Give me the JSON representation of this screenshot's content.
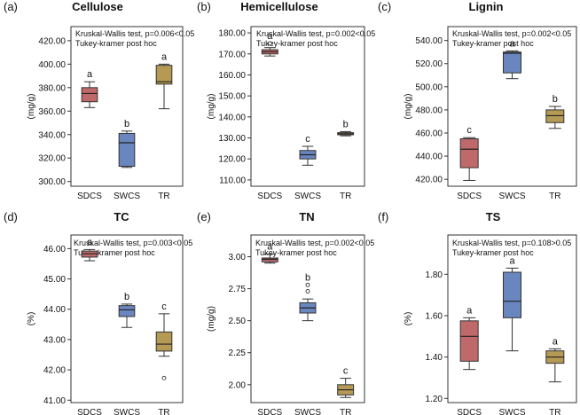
{
  "colors": {
    "SDCS": "#c0696a",
    "SWCS": "#6a86bf",
    "TR": "#b59a55",
    "stroke": "#333333"
  },
  "chart_data": [
    {
      "type": "boxplot",
      "panel": "(a)",
      "title": "Cellulose",
      "ylabel": "(mg/g)",
      "test_text": "Kruskal-Wallis test, p=0.006<0.05",
      "posthoc_text": "Tukey-kramer post hoc",
      "ylim": [
        296,
        432
      ],
      "ticks": [
        300,
        320,
        340,
        360,
        380,
        400,
        420
      ],
      "tick_labels": [
        "300.00",
        "320.00",
        "340.00",
        "360.00",
        "380.00",
        "400.00",
        "420.00"
      ],
      "categories": [
        "SDCS",
        "SWCS",
        "TR"
      ],
      "boxes": [
        {
          "name": "SDCS",
          "min": 363,
          "q1": 368,
          "median": 375,
          "q3": 380,
          "max": 385,
          "outliers": [],
          "letter": "a"
        },
        {
          "name": "SWCS",
          "min": 312,
          "q1": 313,
          "median": 333,
          "q3": 341,
          "max": 343,
          "outliers": [],
          "letter": "b"
        },
        {
          "name": "TR",
          "min": 362,
          "q1": 383,
          "median": 385,
          "q3": 399,
          "max": 400,
          "outliers": [],
          "letter": "a"
        }
      ]
    },
    {
      "type": "boxplot",
      "panel": "(b)",
      "title": "Hemicellulose",
      "ylabel": "(mg/g)",
      "test_text": "Kruskal-Wallis test, p=0.002<0.05",
      "posthoc_text": "Tukey-kramer post hoc",
      "ylim": [
        107,
        183
      ],
      "ticks": [
        110,
        120,
        130,
        140,
        150,
        160,
        170,
        180
      ],
      "tick_labels": [
        "110.00",
        "120.00",
        "130.00",
        "140.00",
        "150.00",
        "160.00",
        "170.00",
        "180.00"
      ],
      "categories": [
        "SDCS",
        "SWCS",
        "TR"
      ],
      "boxes": [
        {
          "name": "SDCS",
          "min": 169,
          "q1": 170,
          "median": 171,
          "q3": 172,
          "max": 173,
          "outliers": [
            175
          ],
          "letter": "a"
        },
        {
          "name": "SWCS",
          "min": 117,
          "q1": 120,
          "median": 122,
          "q3": 124,
          "max": 126,
          "outliers": [],
          "letter": "c"
        },
        {
          "name": "TR",
          "min": 131,
          "q1": 131.5,
          "median": 132,
          "q3": 132.5,
          "max": 133,
          "outliers": [],
          "letter": "b"
        }
      ]
    },
    {
      "type": "boxplot",
      "panel": "(c)",
      "title": "Lignin",
      "ylabel": "(mg/g)",
      "test_text": "Kruskal-Wallis test, p=0.002<0.05",
      "posthoc_text": "Tukey-kramer post hoc",
      "ylim": [
        414,
        552
      ],
      "ticks": [
        420,
        440,
        460,
        480,
        500,
        520,
        540
      ],
      "tick_labels": [
        "420.00",
        "440.00",
        "460.00",
        "480.00",
        "500.00",
        "520.00",
        "540.00"
      ],
      "categories": [
        "SDCS",
        "SWCS",
        "TR"
      ],
      "boxes": [
        {
          "name": "SDCS",
          "min": 419,
          "q1": 430,
          "median": 446,
          "q3": 455,
          "max": 456,
          "outliers": [],
          "letter": "c"
        },
        {
          "name": "SWCS",
          "min": 507,
          "q1": 512,
          "median": 529,
          "q3": 530,
          "max": 531,
          "outliers": [],
          "letter": "a"
        },
        {
          "name": "TR",
          "min": 464,
          "q1": 469,
          "median": 475,
          "q3": 480,
          "max": 483,
          "outliers": [],
          "letter": "b"
        }
      ]
    },
    {
      "type": "boxplot",
      "panel": "(d)",
      "title": "TC",
      "ylabel": "(%)",
      "test_text": "Kruskal-Wallis test, p=0.003<0.05",
      "posthoc_text": "Tukey-kramer post hoc",
      "ylim": [
        40.92,
        46.45
      ],
      "ticks": [
        41,
        42,
        43,
        44,
        45,
        46
      ],
      "tick_labels": [
        "41.00",
        "42.00",
        "43.00",
        "44.00",
        "45.00",
        "46.00"
      ],
      "categories": [
        "SDCS",
        "SWCS",
        "TR"
      ],
      "boxes": [
        {
          "name": "SDCS",
          "min": 45.6,
          "q1": 45.72,
          "median": 45.83,
          "q3": 45.92,
          "max": 45.97,
          "outliers": [],
          "letter": "a"
        },
        {
          "name": "SWCS",
          "min": 43.4,
          "q1": 43.76,
          "median": 43.98,
          "q3": 44.12,
          "max": 44.17,
          "outliers": [],
          "letter": "b"
        },
        {
          "name": "TR",
          "min": 42.45,
          "q1": 42.62,
          "median": 42.85,
          "q3": 43.25,
          "max": 43.85,
          "outliers": [
            41.73
          ],
          "letter": "c"
        }
      ]
    },
    {
      "type": "boxplot",
      "panel": "(e)",
      "title": "TN",
      "ylabel": "(mg/g)",
      "test_text": "Kruskal-Wallis test, p=0.002<0.05",
      "posthoc_text": "Tukey-kramer post hoc",
      "ylim": [
        1.86,
        3.17
      ],
      "ticks": [
        2.0,
        2.25,
        2.5,
        2.75,
        3.0
      ],
      "tick_labels": [
        "2.00",
        "2.25",
        "2.50",
        "2.75",
        "3.00"
      ],
      "categories": [
        "SDCS",
        "SWCS",
        "TR"
      ],
      "boxes": [
        {
          "name": "SDCS",
          "min": 2.95,
          "q1": 2.96,
          "median": 2.98,
          "q3": 2.99,
          "max": 3.02,
          "outliers": [],
          "letter": "a"
        },
        {
          "name": "SWCS",
          "min": 2.5,
          "q1": 2.56,
          "median": 2.6,
          "q3": 2.64,
          "max": 2.67,
          "outliers": [
            2.73,
            2.78
          ],
          "letter": "b"
        },
        {
          "name": "TR",
          "min": 1.9,
          "q1": 1.92,
          "median": 1.96,
          "q3": 2.0,
          "max": 2.05,
          "outliers": [],
          "letter": "c"
        }
      ]
    },
    {
      "type": "boxplot",
      "panel": "(f)",
      "title": "TS",
      "ylabel": "(%)",
      "test_text": "Kruskal-Wallis test, p=0.108>0.05",
      "posthoc_text": "Tukey-kramer post hoc",
      "ylim": [
        1.18,
        1.99
      ],
      "ticks": [
        1.2,
        1.4,
        1.6,
        1.8
      ],
      "tick_labels": [
        "1.20",
        "1.40",
        "1.60",
        "1.80"
      ],
      "categories": [
        "SDCS",
        "SWCS",
        "TR"
      ],
      "boxes": [
        {
          "name": "SDCS",
          "min": 1.34,
          "q1": 1.38,
          "median": 1.5,
          "q3": 1.575,
          "max": 1.59,
          "outliers": [],
          "letter": "a"
        },
        {
          "name": "SWCS",
          "min": 1.43,
          "q1": 1.59,
          "median": 1.67,
          "q3": 1.81,
          "max": 1.83,
          "outliers": [],
          "letter": "a"
        },
        {
          "name": "TR",
          "min": 1.28,
          "q1": 1.37,
          "median": 1.4,
          "q3": 1.43,
          "max": 1.44,
          "outliers": [],
          "letter": "a"
        }
      ]
    }
  ]
}
